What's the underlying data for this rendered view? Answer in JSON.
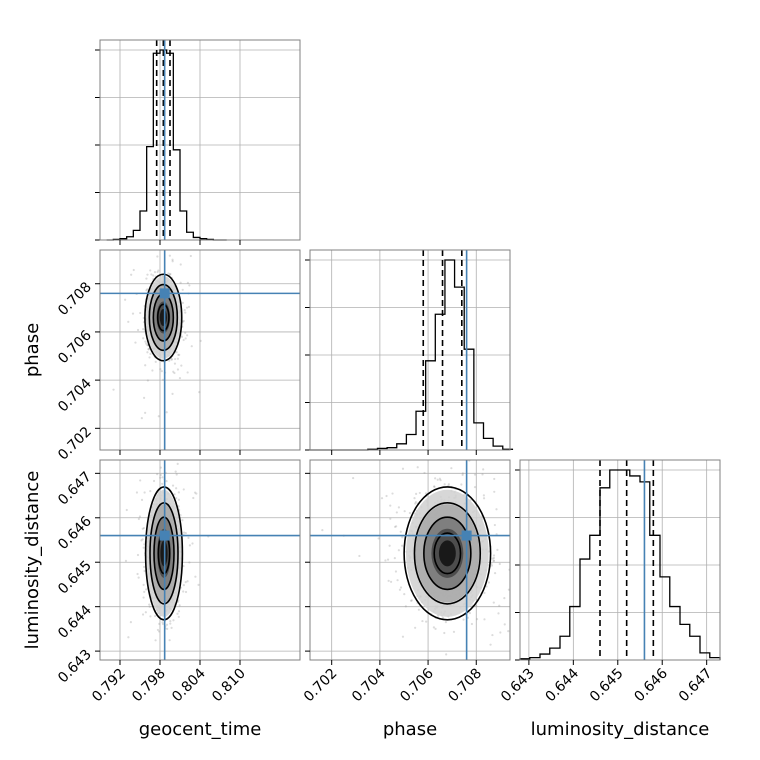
{
  "chart_data": {
    "type": "corner",
    "parameters": [
      "geocent_time",
      "phase",
      "luminosity_distance"
    ],
    "axes": {
      "geocent_time": {
        "range": [
          0.789,
          0.819
        ],
        "ticks": [
          0.792,
          0.798,
          0.804,
          0.81
        ],
        "tick_labels": [
          "0.792",
          "0.798",
          "0.804",
          "0.810"
        ]
      },
      "phase": {
        "range": [
          0.7011,
          0.7094
        ],
        "ticks": [
          0.702,
          0.704,
          0.706,
          0.708
        ],
        "tick_labels": [
          "0.702",
          "0.704",
          "0.706",
          "0.708"
        ]
      },
      "luminosity_distance": {
        "range": [
          0.6428,
          0.6473
        ],
        "ticks": [
          0.643,
          0.644,
          0.645,
          0.646,
          0.647
        ],
        "tick_labels": [
          "0.643",
          "0.644",
          "0.645",
          "0.646",
          "0.647"
        ]
      }
    },
    "truths": {
      "geocent_time": 0.7987,
      "phase": 0.7076,
      "luminosity_distance": 0.6456
    },
    "quantiles": {
      "geocent_time": [
        0.7975,
        0.7985,
        0.7995
      ],
      "phase": [
        0.7058,
        0.7066,
        0.7074
      ],
      "luminosity_distance": [
        0.6446,
        0.6452,
        0.6458
      ]
    },
    "histograms": {
      "geocent_time": {
        "bins": [
          0.79,
          0.791,
          0.792,
          0.793,
          0.794,
          0.795,
          0.796,
          0.797,
          0.798,
          0.799,
          0.8,
          0.801,
          0.802,
          0.803,
          0.804,
          0.805,
          0.806,
          0.807
        ],
        "counts": [
          0,
          1,
          2,
          5,
          15,
          45,
          145,
          290,
          295,
          290,
          140,
          45,
          12,
          4,
          2,
          1,
          0,
          0
        ]
      },
      "phase": {
        "bins": [
          0.7011,
          0.7015,
          0.7019,
          0.7023,
          0.7027,
          0.7031,
          0.7035,
          0.7039,
          0.7043,
          0.7047,
          0.7051,
          0.7055,
          0.7059,
          0.7063,
          0.7067,
          0.7071,
          0.7075,
          0.7079,
          0.7083,
          0.7087,
          0.7091
        ],
        "counts": [
          0,
          0,
          0,
          0,
          0,
          0,
          1,
          2,
          3,
          8,
          20,
          50,
          115,
          175,
          245,
          210,
          130,
          35,
          15,
          5,
          1
        ]
      },
      "luminosity_distance": {
        "bins": [
          0.6428,
          0.64302,
          0.64325,
          0.64347,
          0.6437,
          0.64392,
          0.64415,
          0.64437,
          0.6446,
          0.64482,
          0.64505,
          0.64527,
          0.6455,
          0.64572,
          0.64595,
          0.64617,
          0.6464,
          0.64662,
          0.64685,
          0.64707,
          0.6473
        ],
        "counts": [
          1,
          2,
          5,
          10,
          20,
          45,
          85,
          105,
          145,
          160,
          160,
          155,
          150,
          105,
          70,
          45,
          30,
          20,
          6,
          2
        ]
      }
    },
    "centers": {
      "geocent_time|phase": {
        "x": 0.7985,
        "y": 0.7066
      },
      "geocent_time|luminosity_distance": {
        "x": 0.7986,
        "y": 0.6452
      },
      "phase|luminosity_distance": {
        "x": 0.7068,
        "y": 0.6452
      }
    },
    "spread": {
      "geocent_time": 0.0012,
      "phase": 0.00078,
      "luminosity_distance": 0.00065
    }
  }
}
